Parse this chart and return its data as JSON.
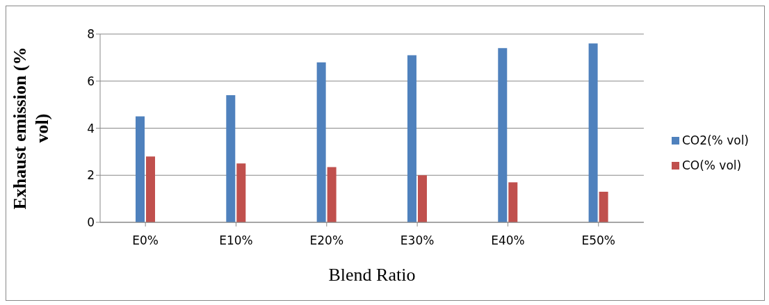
{
  "chart_data": {
    "type": "bar",
    "xlabel": "Blend Ratio",
    "ylabel": "Exhaust emission (% vol)",
    "categories": [
      "E0%",
      "E10%",
      "E20%",
      "E30%",
      "E40%",
      "E50%"
    ],
    "series": [
      {
        "name": "CO2(% vol)",
        "color": "#4f81bd",
        "values": [
          4.5,
          5.4,
          6.8,
          7.1,
          7.4,
          7.6
        ]
      },
      {
        "name": "CO(% vol)",
        "color": "#c0504d",
        "values": [
          2.8,
          2.5,
          2.35,
          2.0,
          1.7,
          1.3
        ]
      }
    ],
    "ylim": [
      0,
      8
    ],
    "yticks": [
      0,
      2,
      4,
      6,
      8
    ],
    "grid": "y",
    "legend": "right"
  }
}
